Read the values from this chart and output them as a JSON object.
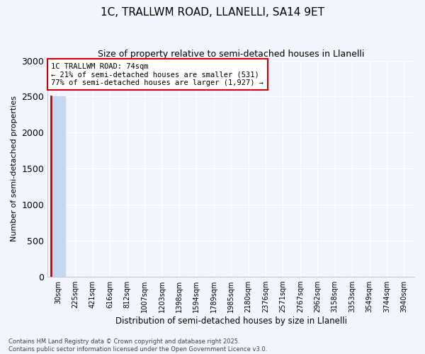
{
  "title": "1C, TRALLWM ROAD, LLANELLI, SA14 9ET",
  "subtitle": "Size of property relative to semi-detached houses in Llanelli",
  "xlabel": "Distribution of semi-detached houses by size in Llanelli",
  "ylabel": "Number of semi-detached properties",
  "categories": [
    "30sqm",
    "225sqm",
    "421sqm",
    "616sqm",
    "812sqm",
    "1007sqm",
    "1203sqm",
    "1398sqm",
    "1594sqm",
    "1789sqm",
    "1985sqm",
    "2180sqm",
    "2376sqm",
    "2571sqm",
    "2767sqm",
    "2962sqm",
    "3158sqm",
    "3353sqm",
    "3549sqm",
    "3744sqm",
    "3940sqm"
  ],
  "values": [
    2500,
    0,
    0,
    0,
    0,
    0,
    0,
    0,
    0,
    0,
    0,
    0,
    0,
    0,
    0,
    0,
    0,
    0,
    0,
    0,
    0
  ],
  "bar_color": "#c5d8f0",
  "highlight_color": "#cc0000",
  "ylim": [
    0,
    3000
  ],
  "yticks": [
    0,
    500,
    1000,
    1500,
    2000,
    2500,
    3000
  ],
  "annotation_title": "1C TRALLWM ROAD: 74sqm",
  "annotation_line2": "← 21% of semi-detached houses are smaller (531)",
  "annotation_line3": "77% of semi-detached houses are larger (1,927) →",
  "annotation_box_color": "#cc0000",
  "footer_line1": "Contains HM Land Registry data © Crown copyright and database right 2025.",
  "footer_line2": "Contains public sector information licensed under the Open Government Licence v3.0.",
  "bg_color": "#f2f5fc",
  "plot_bg_color": "#f2f5fc",
  "grid_color": "#ffffff"
}
